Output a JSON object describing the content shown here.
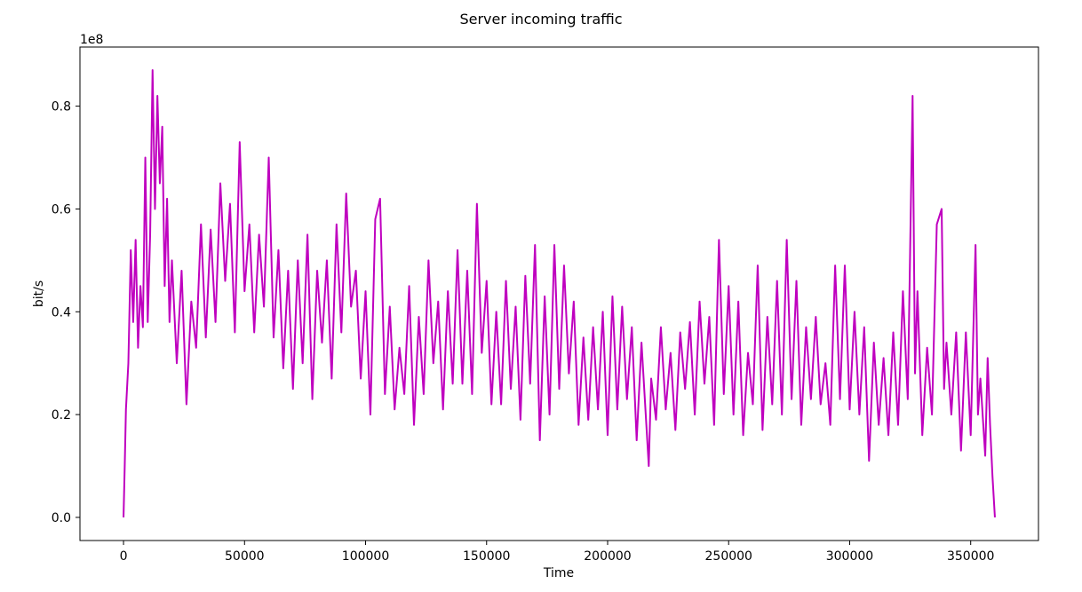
{
  "chart_data": {
    "type": "line",
    "title": "Server incoming traffic",
    "xlabel": "Time",
    "ylabel": "bit/s",
    "y_offset_label": "1e8",
    "y_scale": 100000000,
    "xlim": [
      -18000,
      378000
    ],
    "ylim": [
      -4500000,
      91500000
    ],
    "x_ticks": [
      0,
      50000,
      100000,
      150000,
      200000,
      250000,
      300000,
      350000
    ],
    "x_tick_labels": [
      "0",
      "50000",
      "100000",
      "150000",
      "200000",
      "250000",
      "300000",
      "350000"
    ],
    "y_ticks": [
      0,
      20000000,
      40000000,
      60000000,
      80000000
    ],
    "y_tick_labels": [
      "0.0",
      "0.2",
      "0.4",
      "0.6",
      "0.8"
    ],
    "grid": false,
    "series": [
      {
        "color": "#bf00bf",
        "x": [
          0,
          500,
          1000,
          2000,
          3000,
          4000,
          5000,
          6000,
          7000,
          8000,
          9000,
          10000,
          11000,
          12000,
          13000,
          14000,
          15000,
          16000,
          17000,
          18000,
          19000,
          20000,
          22000,
          24000,
          26000,
          28000,
          30000,
          32000,
          34000,
          36000,
          38000,
          40000,
          42000,
          44000,
          46000,
          48000,
          50000,
          52000,
          54000,
          56000,
          58000,
          60000,
          62000,
          64000,
          66000,
          68000,
          70000,
          72000,
          74000,
          76000,
          78000,
          80000,
          82000,
          84000,
          86000,
          88000,
          90000,
          92000,
          94000,
          96000,
          98000,
          100000,
          102000,
          104000,
          106000,
          108000,
          110000,
          112000,
          114000,
          116000,
          118000,
          120000,
          122000,
          124000,
          126000,
          128000,
          130000,
          132000,
          134000,
          136000,
          138000,
          140000,
          142000,
          144000,
          146000,
          148000,
          150000,
          152000,
          154000,
          156000,
          158000,
          160000,
          162000,
          164000,
          166000,
          168000,
          170000,
          172000,
          174000,
          176000,
          178000,
          180000,
          182000,
          184000,
          186000,
          188000,
          190000,
          192000,
          194000,
          196000,
          198000,
          200000,
          202000,
          204000,
          206000,
          208000,
          210000,
          212000,
          214000,
          216000,
          217000,
          218000,
          220000,
          222000,
          224000,
          226000,
          228000,
          230000,
          232000,
          234000,
          236000,
          238000,
          240000,
          242000,
          244000,
          246000,
          248000,
          250000,
          252000,
          254000,
          256000,
          258000,
          260000,
          262000,
          264000,
          266000,
          268000,
          270000,
          272000,
          274000,
          276000,
          278000,
          280000,
          282000,
          284000,
          286000,
          288000,
          290000,
          292000,
          294000,
          296000,
          298000,
          300000,
          302000,
          304000,
          306000,
          308000,
          310000,
          312000,
          314000,
          316000,
          318000,
          320000,
          322000,
          324000,
          326000,
          327000,
          328000,
          330000,
          332000,
          334000,
          336000,
          338000,
          339000,
          340000,
          342000,
          344000,
          346000,
          348000,
          350000,
          352000,
          353000,
          354000,
          356000,
          357000,
          358000,
          359000,
          360000
        ],
        "y": [
          0,
          10000000,
          21000000,
          30000000,
          52000000,
          38000000,
          54000000,
          33000000,
          45000000,
          37000000,
          70000000,
          38000000,
          55000000,
          87000000,
          60000000,
          82000000,
          65000000,
          76000000,
          45000000,
          62000000,
          38000000,
          50000000,
          30000000,
          48000000,
          22000000,
          42000000,
          33000000,
          57000000,
          35000000,
          56000000,
          38000000,
          65000000,
          46000000,
          61000000,
          36000000,
          73000000,
          44000000,
          57000000,
          36000000,
          55000000,
          41000000,
          70000000,
          35000000,
          52000000,
          29000000,
          48000000,
          25000000,
          50000000,
          30000000,
          55000000,
          23000000,
          48000000,
          34000000,
          50000000,
          27000000,
          57000000,
          36000000,
          63000000,
          41000000,
          48000000,
          27000000,
          44000000,
          20000000,
          58000000,
          62000000,
          24000000,
          41000000,
          21000000,
          33000000,
          24000000,
          45000000,
          18000000,
          39000000,
          24000000,
          50000000,
          30000000,
          42000000,
          21000000,
          44000000,
          26000000,
          52000000,
          26000000,
          48000000,
          24000000,
          61000000,
          32000000,
          46000000,
          22000000,
          40000000,
          22000000,
          46000000,
          25000000,
          41000000,
          19000000,
          47000000,
          26000000,
          53000000,
          15000000,
          43000000,
          20000000,
          53000000,
          25000000,
          49000000,
          28000000,
          42000000,
          18000000,
          35000000,
          19000000,
          37000000,
          21000000,
          40000000,
          16000000,
          43000000,
          21000000,
          41000000,
          23000000,
          37000000,
          15000000,
          34000000,
          18000000,
          10000000,
          27000000,
          19000000,
          37000000,
          21000000,
          32000000,
          17000000,
          36000000,
          25000000,
          38000000,
          20000000,
          42000000,
          26000000,
          39000000,
          18000000,
          54000000,
          24000000,
          45000000,
          20000000,
          42000000,
          16000000,
          32000000,
          22000000,
          49000000,
          17000000,
          39000000,
          22000000,
          46000000,
          20000000,
          54000000,
          23000000,
          46000000,
          18000000,
          37000000,
          23000000,
          39000000,
          22000000,
          30000000,
          18000000,
          49000000,
          23000000,
          49000000,
          21000000,
          40000000,
          20000000,
          37000000,
          11000000,
          34000000,
          18000000,
          31000000,
          16000000,
          36000000,
          18000000,
          44000000,
          23000000,
          82000000,
          28000000,
          44000000,
          16000000,
          33000000,
          20000000,
          57000000,
          60000000,
          25000000,
          34000000,
          20000000,
          36000000,
          13000000,
          36000000,
          16000000,
          53000000,
          20000000,
          27000000,
          12000000,
          31000000,
          18000000,
          8000000,
          0
        ]
      }
    ]
  }
}
